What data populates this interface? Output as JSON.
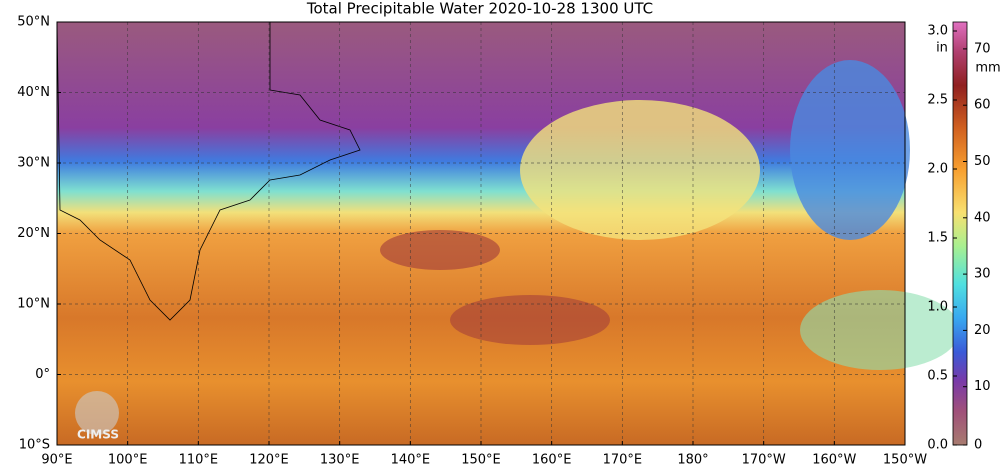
{
  "title": "Total Precipitable Water  2020-10-28 1300 UTC",
  "map": {
    "lat_labels": [
      "50°N",
      "40°N",
      "30°N",
      "20°N",
      "10°N",
      "0°",
      "10°S"
    ],
    "lon_labels": [
      "90°E",
      "100°E",
      "110°E",
      "120°E",
      "130°E",
      "140°E",
      "150°E",
      "160°E",
      "170°E",
      "180°",
      "170°W",
      "160°W",
      "150°W"
    ]
  },
  "colorbar": {
    "in_label": "in",
    "in_ticks": [
      "0.0",
      "0.5",
      "1.0",
      "1.5",
      "2.0",
      "2.5",
      "3.0"
    ],
    "mm_label": "mm",
    "mm_ticks": [
      "0",
      "10",
      "20",
      "30",
      "40",
      "50",
      "60",
      "70"
    ]
  },
  "logo": "CIMSS"
}
